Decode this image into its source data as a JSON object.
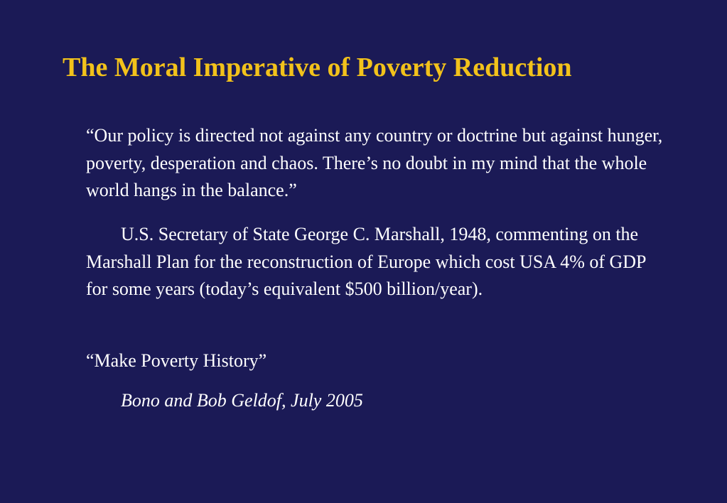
{
  "slide": {
    "title": "The Moral Imperative of Poverty Reduction",
    "quote_marshall": "“Our policy is directed not against any country or doctrine but against hunger, poverty, desperation and chaos.  There’s no doubt in my mind that the whole world hangs in the balance.”",
    "attribution_marshall": "U.S. Secretary of State George C. Marshall, 1948, commenting on the Marshall Plan for the reconstruction of Europe which cost USA 4% of GDP for some years (today’s equivalent $500 billion/year).",
    "quote_bono": "“Make Poverty History”",
    "attribution_bono": "Bono and Bob Geldof, July 2005"
  },
  "colors": {
    "background": "#1b1a56",
    "title": "#f2c21b",
    "text": "#ffffff"
  }
}
